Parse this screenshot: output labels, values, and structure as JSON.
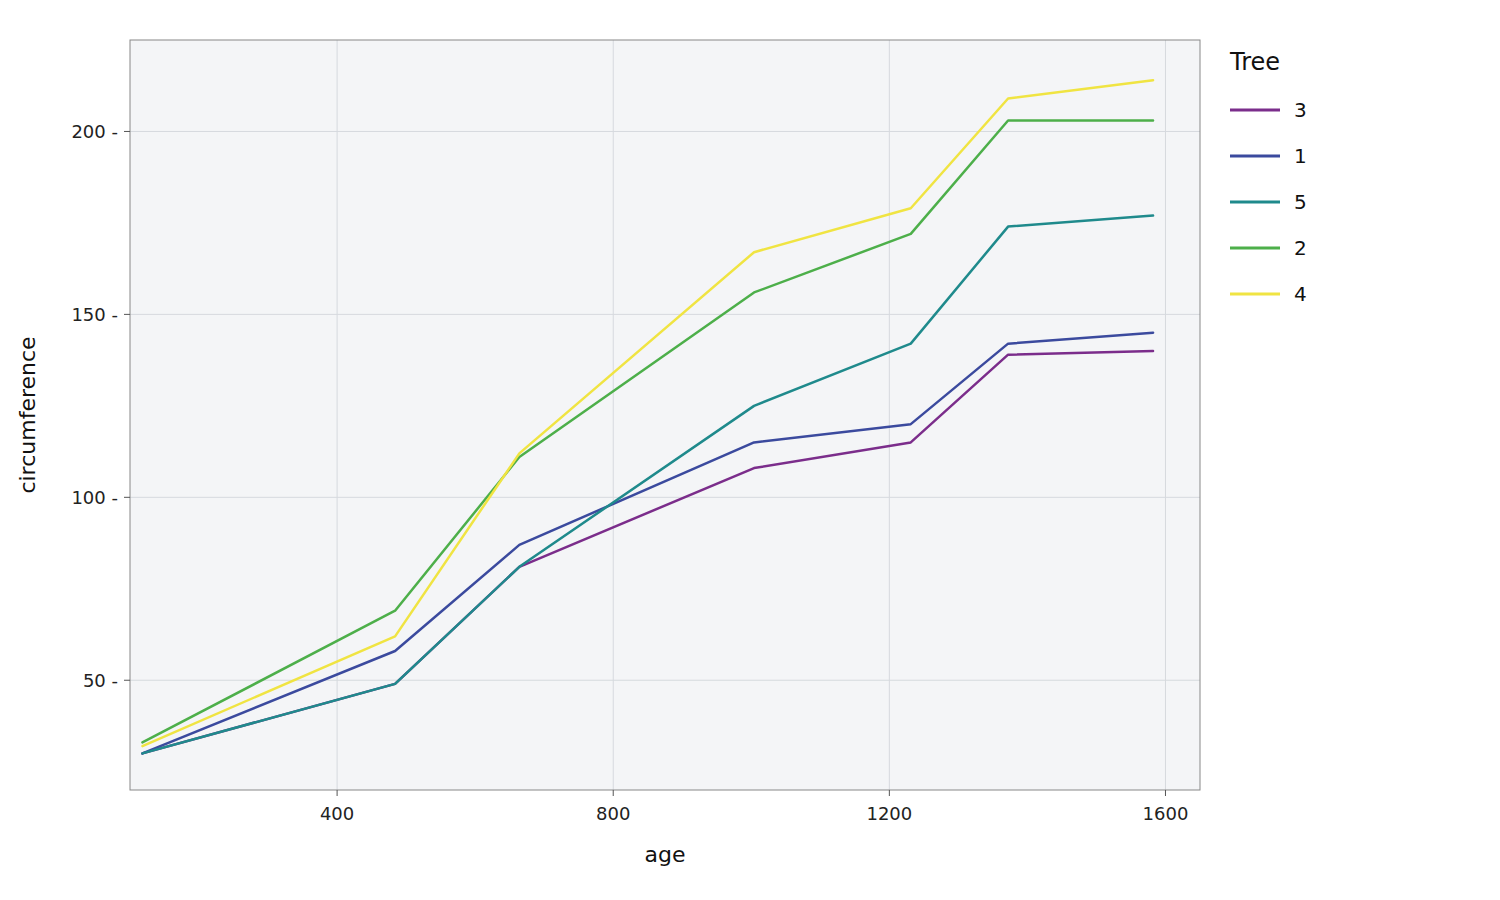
{
  "chart_data": {
    "type": "line",
    "xlabel": "age",
    "ylabel": "circumference",
    "legend_title": "Tree",
    "x": [
      118,
      484,
      664,
      1004,
      1231,
      1372,
      1582
    ],
    "series": [
      {
        "name": "3",
        "color": "#7B2D8B",
        "values": [
          30,
          49,
          81,
          108,
          115,
          139,
          140
        ]
      },
      {
        "name": "1",
        "color": "#3B4A9E",
        "values": [
          30,
          58,
          87,
          115,
          120,
          142,
          145
        ]
      },
      {
        "name": "5",
        "color": "#1F8A8C",
        "values": [
          30,
          49,
          81,
          125,
          142,
          174,
          177
        ]
      },
      {
        "name": "2",
        "color": "#4DAF4A",
        "values": [
          33,
          69,
          111,
          156,
          172,
          203,
          203
        ]
      },
      {
        "name": "4",
        "color": "#F0E442",
        "values": [
          32,
          62,
          112,
          167,
          179,
          209,
          214
        ]
      }
    ],
    "xlim": [
      100,
      1650
    ],
    "ylim": [
      20,
      225
    ],
    "xticks": [
      400,
      800,
      1200,
      1600
    ],
    "yticks": [
      {
        "value": 50,
        "label": "50 -"
      },
      {
        "value": 100,
        "label": "100 -"
      },
      {
        "value": 150,
        "label": "150 -"
      },
      {
        "value": 200,
        "label": "200 -"
      }
    ],
    "grid": true,
    "legend": "right"
  }
}
